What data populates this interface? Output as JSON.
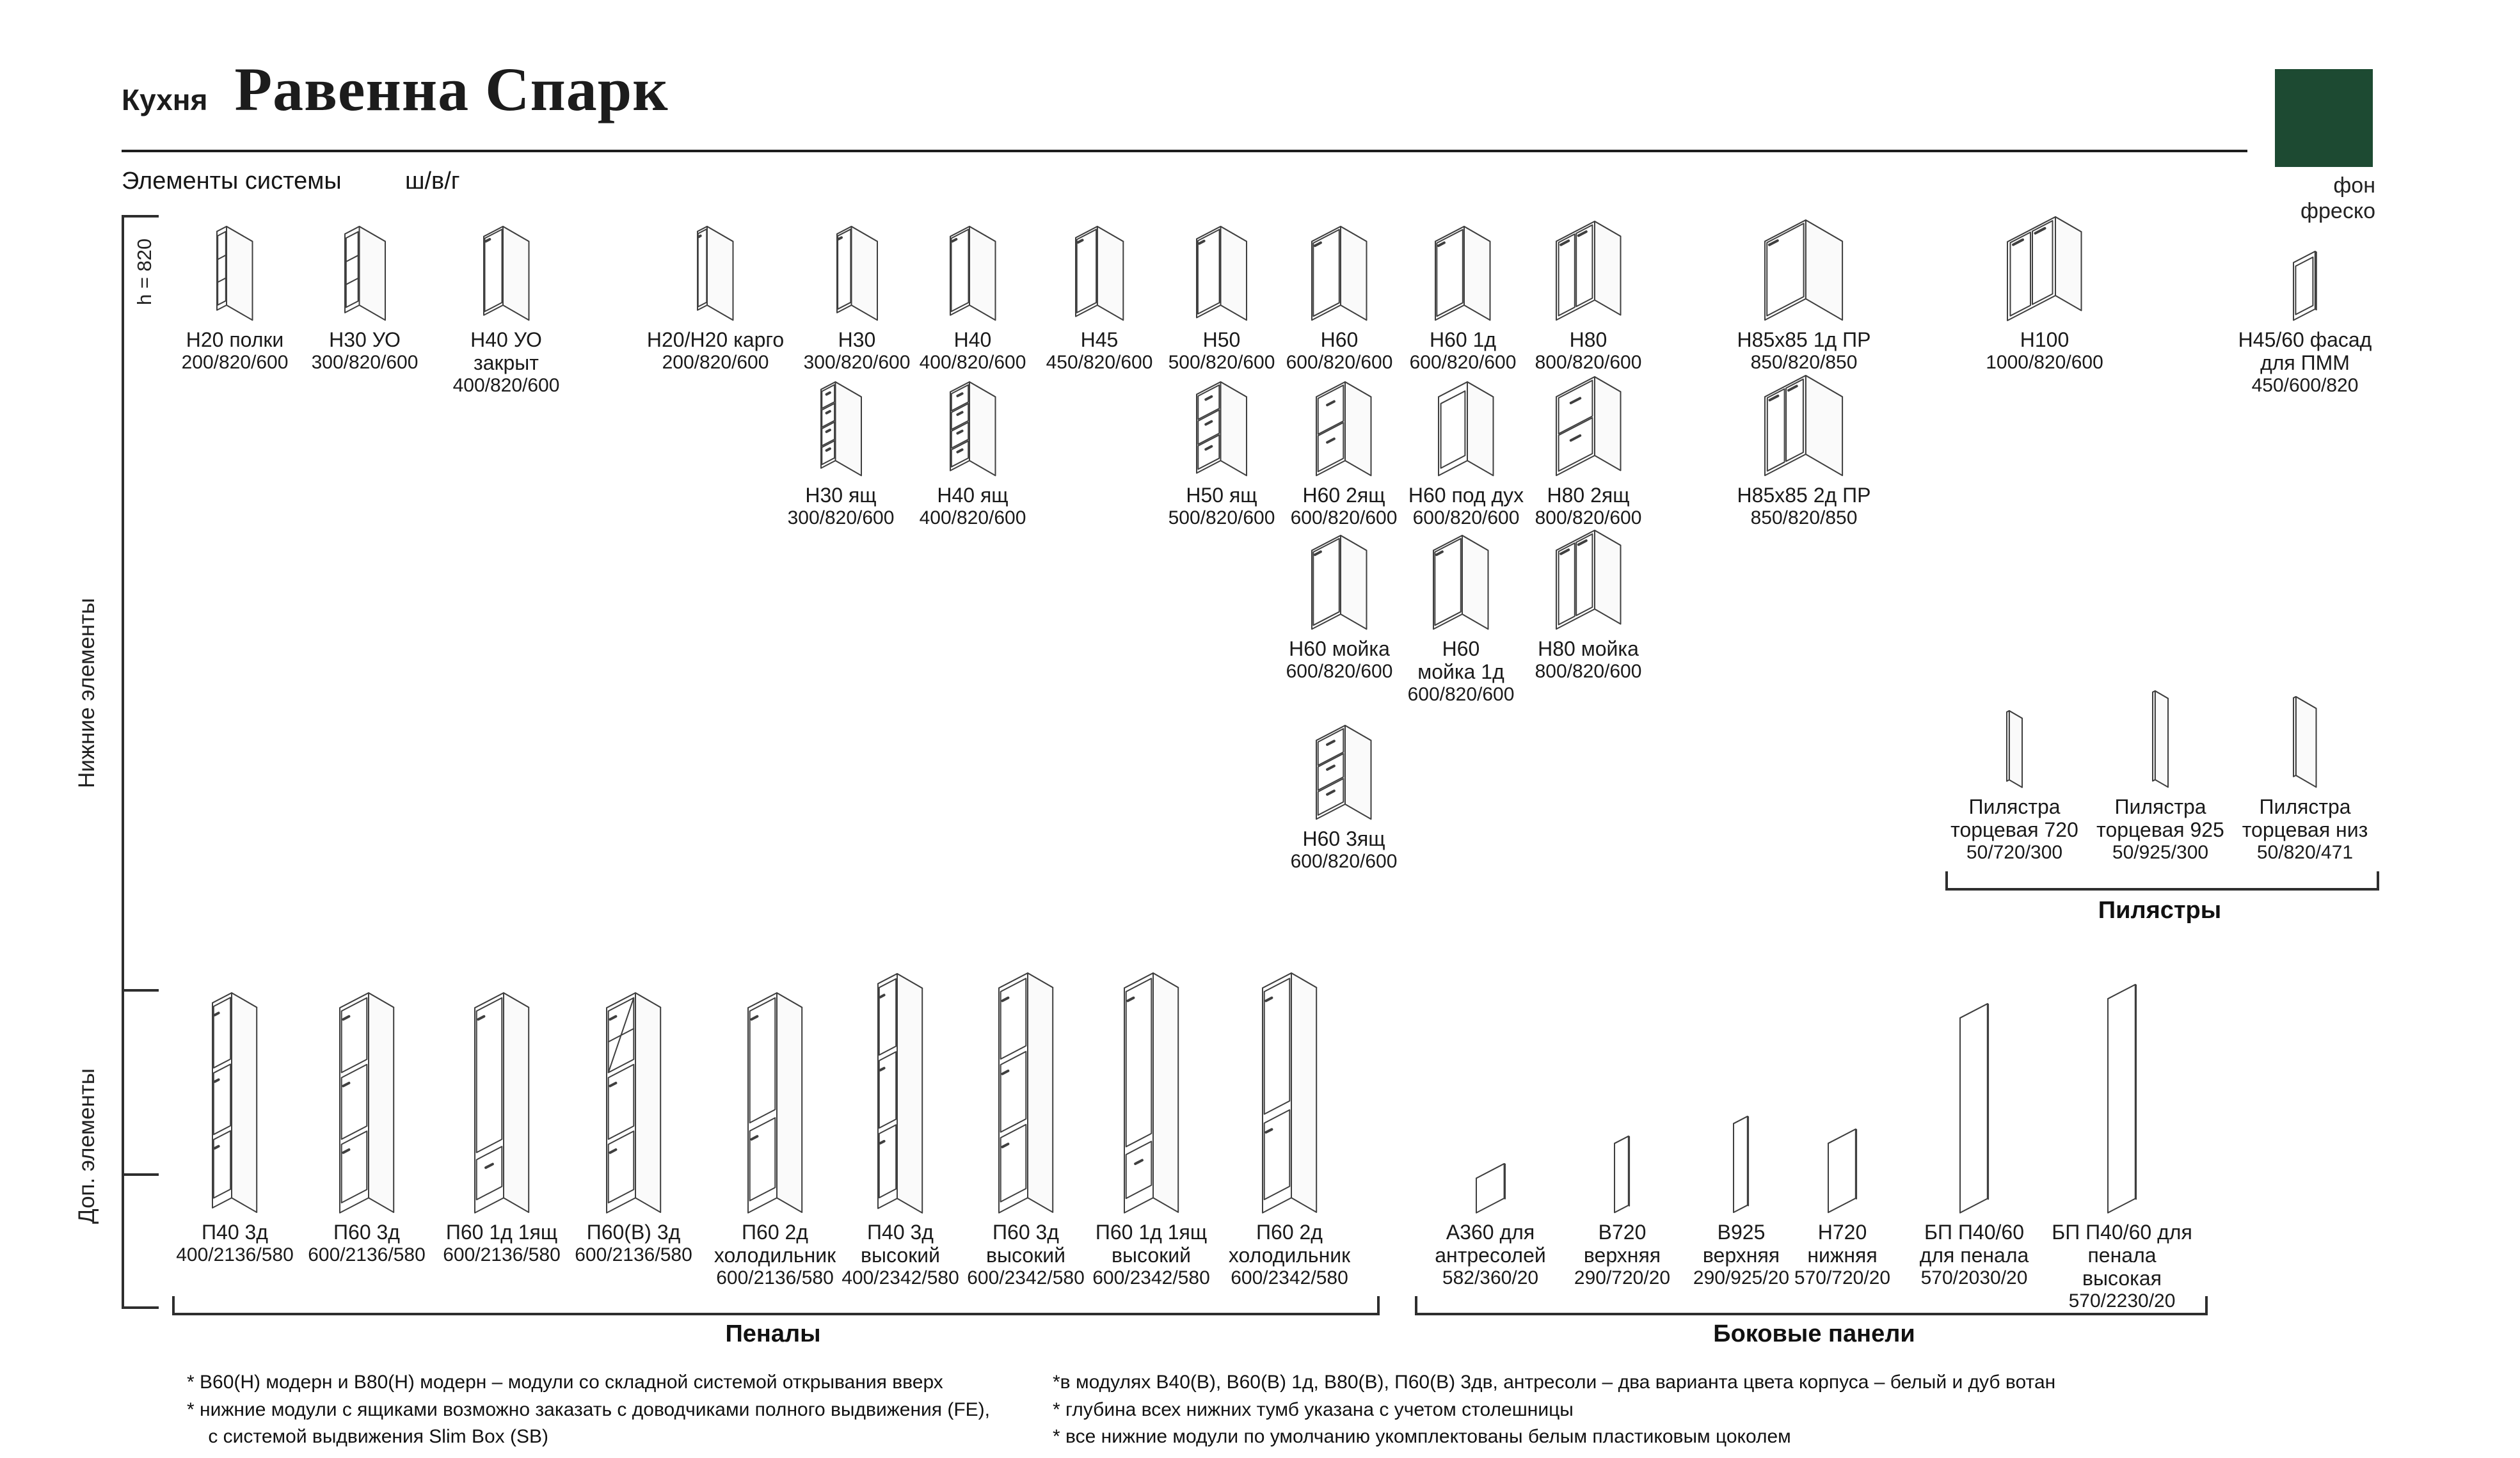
{
  "header": {
    "kitchen_label": "Кухня",
    "title": "Равенна Спарк",
    "subtitle": "Элементы системы",
    "dims_legend": "ш/в/г"
  },
  "swatch": {
    "color": "#1d4a32",
    "label": "фон\nфреско"
  },
  "sections": {
    "bottom_elements_label": "Нижние элементы",
    "bottom_height_note": "h = 820",
    "additional_elements_label": "Доп. элементы",
    "pilasters_label": "Пилястры",
    "penals_label": "Пеналы",
    "side_panels_label": "Боковые панели"
  },
  "modules": {
    "bottom_row1": [
      {
        "name": "Н20 полки",
        "dims": "200/820/600",
        "type": "open"
      },
      {
        "name": "Н30 УО",
        "dims": "300/820/600",
        "type": "open"
      },
      {
        "name": "Н40 УО закрыт",
        "dims": "400/820/600",
        "type": "door"
      },
      {
        "name": "Н20/Н20 карго",
        "dims": "200/820/600",
        "type": "door"
      },
      {
        "name": "Н30",
        "dims": "300/820/600",
        "type": "door"
      },
      {
        "name": "Н40",
        "dims": "400/820/600",
        "type": "door"
      },
      {
        "name": "Н45",
        "dims": "450/820/600",
        "type": "door"
      },
      {
        "name": "Н50",
        "dims": "500/820/600",
        "type": "door"
      },
      {
        "name": "Н60",
        "dims": "600/820/600",
        "type": "door"
      },
      {
        "name": "Н60 1д",
        "dims": "600/820/600",
        "type": "door"
      },
      {
        "name": "Н80",
        "dims": "800/820/600",
        "type": "door2"
      },
      {
        "name": "Н85х85 1д ПР",
        "dims": "850/820/850",
        "type": "door"
      },
      {
        "name": "Н100",
        "dims": "1000/820/600",
        "type": "door2"
      },
      {
        "name": "Н45/60 фасад\nдля ПММ",
        "dims": "450/600/820",
        "type": "facade"
      }
    ],
    "bottom_row2": [
      {
        "name": "Н30 ящ",
        "dims": "300/820/600",
        "type": "drawers4"
      },
      {
        "name": "Н40 ящ",
        "dims": "400/820/600",
        "type": "drawers4"
      },
      {
        "name": "Н50 ящ",
        "dims": "500/820/600",
        "type": "drawers3"
      },
      {
        "name": "Н60 2ящ",
        "dims": "600/820/600",
        "type": "drawers2"
      },
      {
        "name": "Н60 под дух",
        "dims": "600/820/600",
        "type": "oven"
      },
      {
        "name": "Н80 2ящ",
        "dims": "800/820/600",
        "type": "drawers2"
      },
      {
        "name": "Н85х85 2д ПР",
        "dims": "850/820/850",
        "type": "door2"
      }
    ],
    "bottom_row3": [
      {
        "name": "Н60 мойка",
        "dims": "600/820/600",
        "type": "door"
      },
      {
        "name": "Н60\nмойка 1д",
        "dims": "600/820/600",
        "type": "door"
      },
      {
        "name": "Н80 мойка",
        "dims": "800/820/600",
        "type": "door2"
      }
    ],
    "bottom_row4": [
      {
        "name": "Н60 3ящ",
        "dims": "600/820/600",
        "type": "drawers3"
      }
    ],
    "pilasters": [
      {
        "name": "Пилястра\nторцевая 720",
        "dims": "50/720/300",
        "type": "panel"
      },
      {
        "name": "Пилястра\nторцевая 925",
        "dims": "50/925/300",
        "type": "panel"
      },
      {
        "name": "Пилястра\nторцевая низ",
        "dims": "50/820/471",
        "type": "panel"
      }
    ],
    "penals": [
      {
        "name": "П40 3д",
        "dims": "400/2136/580",
        "type": "doors3"
      },
      {
        "name": "П60 3д",
        "dims": "600/2136/580",
        "type": "doors3"
      },
      {
        "name": "П60 1д 1ящ",
        "dims": "600/2136/580",
        "type": "door_drawer"
      },
      {
        "name": "П60(В) 3д",
        "dims": "600/2136/580",
        "type": "doors3glass"
      },
      {
        "name": "П60 2д\nхолодильник",
        "dims": "600/2136/580",
        "type": "fridge2"
      },
      {
        "name": "П40 3д\nвысокий",
        "dims": "400/2342/580",
        "type": "doors3"
      },
      {
        "name": "П60 3д\nвысокий",
        "dims": "600/2342/580",
        "type": "doors3"
      },
      {
        "name": "П60 1д 1ящ\nвысокий",
        "dims": "600/2342/580",
        "type": "door_drawer"
      },
      {
        "name": "П60 2д\nхолодильник",
        "dims": "600/2342/580",
        "type": "fridge2"
      }
    ],
    "side_panels": [
      {
        "name": "А360 для\nантресолей",
        "dims": "582/360/20",
        "type": "panel"
      },
      {
        "name": "В720\nверхняя",
        "dims": "290/720/20",
        "type": "panel"
      },
      {
        "name": "В925\nверхняя",
        "dims": "290/925/20",
        "type": "panel"
      },
      {
        "name": "Н720\nнижняя",
        "dims": "570/720/20",
        "type": "panel"
      },
      {
        "name": "БП П40/60\nдля пенала",
        "dims": "570/2030/20",
        "type": "panel"
      },
      {
        "name": "БП П40/60 для\nпенала высокая",
        "dims": "570/2230/20",
        "type": "panel"
      }
    ]
  },
  "footnotes": {
    "left": "*  В60(Н) модерн и В80(Н) модерн – модули со складной системой открывания вверх\n*  нижние модули с ящиками возможно заказать с доводчиками полного выдвижения (FE),\n    с системой выдвижения Slim Box (SB)",
    "right": "*в модулях В40(В), В60(В) 1д, В80(В), П60(В) 3дв, антресоли – два варианта цвета корпуса – белый и дуб вотан\n* глубина всех нижних тумб указана с учетом столешницы\n* все нижние модули по умолчанию укомплектованы белым пластиковым цоколем"
  }
}
